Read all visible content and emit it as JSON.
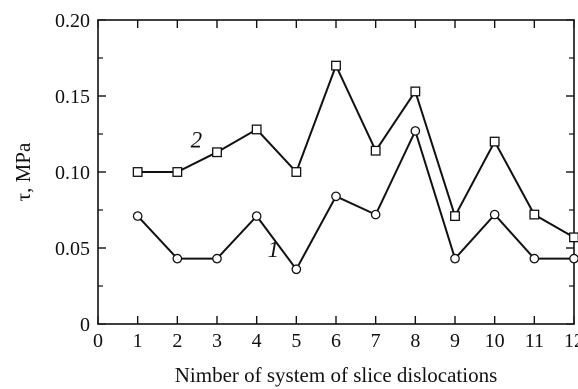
{
  "chart_data": {
    "type": "line",
    "xlabel": "Nimber of system of slice dislocations",
    "ylabel": "τ, MPa",
    "xlim": [
      0,
      12
    ],
    "ylim": [
      0,
      0.2
    ],
    "x_ticks": [
      "0",
      "1",
      "2",
      "3",
      "4",
      "5",
      "6",
      "7",
      "8",
      "9",
      "10",
      "11",
      "12"
    ],
    "y_ticks": [
      "0",
      "0.05",
      "0.10",
      "0.15",
      "0.20"
    ],
    "x": [
      1,
      2,
      3,
      4,
      5,
      6,
      7,
      8,
      9,
      10,
      11,
      12
    ],
    "grid": false,
    "series": [
      {
        "label": "1",
        "marker": "circle",
        "values": [
          0.071,
          0.043,
          0.043,
          0.071,
          0.036,
          0.084,
          0.072,
          0.127,
          0.043,
          0.072,
          0.043,
          0.043
        ]
      },
      {
        "label": "2",
        "marker": "square",
        "values": [
          0.1,
          0.1,
          0.113,
          0.128,
          0.1,
          0.17,
          0.114,
          0.153,
          0.071,
          0.12,
          0.072,
          0.057
        ]
      }
    ]
  }
}
